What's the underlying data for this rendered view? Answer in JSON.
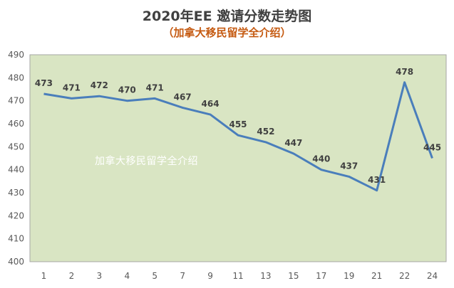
{
  "header": {
    "title": "2020年EE 邀请分数走势图",
    "subtitle": "（加拿大移民留学全介绍）"
  },
  "watermark_text": "加拿大移民留学全介绍",
  "colors": {
    "plot_background": "#d9e5c3",
    "line": "#4a7ebb",
    "title": "#404040",
    "subtitle": "#c55a11"
  },
  "chart_data": {
    "type": "line",
    "title": "2020年EE 邀请分数走势图",
    "subtitle": "（加拿大移民留学全介绍）",
    "categories": [
      "1",
      "2",
      "3",
      "4",
      "5",
      "7",
      "9",
      "11",
      "13",
      "15",
      "17",
      "19",
      "21",
      "22",
      "24"
    ],
    "series": [
      {
        "values": [
          473,
          471,
          472,
          470,
          471,
          467,
          464,
          455,
          452,
          447,
          440,
          437,
          431,
          478,
          445
        ]
      }
    ],
    "ylim": [
      400,
      490
    ],
    "yticks": [
      400,
      410,
      420,
      430,
      440,
      450,
      460,
      470,
      480,
      490
    ],
    "grid": false,
    "legend": "none"
  }
}
